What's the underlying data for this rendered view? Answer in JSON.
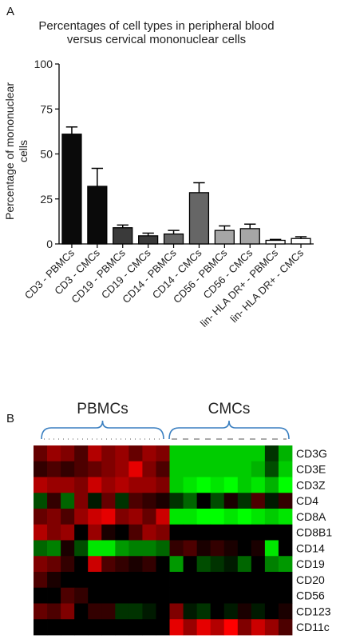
{
  "chart_data": [
    {
      "type": "bar",
      "panel_label": "A",
      "title": "Percentages of cell types in peripheral blood",
      "subtitle": "versus cervical mononuclear cells",
      "ylabel": "Percentage of mononuclear cells",
      "ylabel_lines": [
        "Percentage of mononuclear",
        "cells"
      ],
      "xlabel": "",
      "ylim": [
        0,
        100
      ],
      "yticks": [
        0,
        25,
        50,
        75,
        100
      ],
      "grid": false,
      "categories": [
        "CD3 - PBMCs",
        "CD3 - CMCs",
        "CD19 - PBMCs",
        "CD19 - CMCs",
        "CD14 - PBMCs",
        "CD14 - CMCs",
        "CD56 - PBMCs",
        "CD56 - CMCs",
        "lin- HLA DR+ - PBMCs",
        "lin- HLA DR+ - CMCs"
      ],
      "values": [
        61,
        32,
        9,
        4.5,
        5.5,
        28.5,
        7.5,
        8.5,
        2,
        3
      ],
      "errors": [
        4,
        10,
        1.5,
        1.5,
        2,
        5.5,
        2.5,
        2.5,
        0.5,
        1
      ],
      "bar_colors": [
        "#0a0a0a",
        "#0a0a0a",
        "#3a3a3a",
        "#3a3a3a",
        "#666666",
        "#666666",
        "#a6a6a6",
        "#a6a6a6",
        "#ffffff",
        "#ffffff"
      ]
    },
    {
      "type": "heatmap",
      "panel_label": "B",
      "group_labels": [
        "PBMCs",
        "CMCs"
      ],
      "group_sizes": [
        10,
        9
      ],
      "rows": [
        "CD3G",
        "CD3E",
        "CD3Z",
        "CD4",
        "CD8A",
        "CD8B1",
        "CD14",
        "CD19",
        "CD20",
        "CD56",
        "CD123",
        "CD11c"
      ],
      "colorscale": {
        "low": "#00ff00",
        "mid": "#000000",
        "high": "#ff0000"
      },
      "values": [
        [
          0.4,
          0.6,
          0.5,
          0.3,
          0.7,
          0.5,
          0.6,
          0.4,
          0.6,
          0.5,
          -0.8,
          -0.8,
          -0.8,
          -0.8,
          -0.8,
          -0.8,
          -0.8,
          -0.2,
          -0.7
        ],
        [
          0.2,
          0.3,
          0.2,
          0.3,
          0.4,
          0.5,
          0.6,
          0.9,
          0.5,
          0.3,
          -0.8,
          -0.8,
          -0.8,
          -0.8,
          -0.8,
          -0.8,
          -0.7,
          -0.3,
          -0.8
        ],
        [
          0.7,
          0.6,
          0.6,
          0.5,
          0.8,
          0.6,
          0.7,
          0.6,
          0.6,
          0.5,
          -0.8,
          -0.9,
          -1.0,
          -0.9,
          -1.0,
          -0.8,
          -0.9,
          -0.7,
          -1.0
        ],
        [
          -0.3,
          0.2,
          -0.4,
          0.5,
          -0.1,
          0.4,
          -0.2,
          0.3,
          0.2,
          0.1,
          -0.2,
          -0.4,
          0.0,
          -0.3,
          0.1,
          -0.2,
          0.3,
          -0.1,
          0.2
        ],
        [
          0.4,
          0.5,
          0.3,
          0.6,
          0.8,
          0.9,
          0.5,
          0.6,
          0.4,
          0.8,
          -0.9,
          -0.9,
          -1.0,
          -1.0,
          -0.9,
          -1.0,
          -0.9,
          -0.8,
          -0.9
        ],
        [
          0.7,
          0.5,
          0.6,
          0.0,
          0.6,
          0.1,
          0.0,
          0.3,
          0.6,
          0.5,
          0.0,
          0.0,
          0.0,
          0.0,
          0.0,
          0.0,
          0.0,
          0.0,
          0.0
        ],
        [
          -0.4,
          -0.5,
          0.1,
          -0.3,
          -0.9,
          -0.9,
          -0.6,
          -0.5,
          -0.5,
          -0.4,
          0.2,
          0.3,
          0.1,
          0.2,
          0.1,
          0.0,
          0.1,
          -0.9,
          0.0
        ],
        [
          0.5,
          0.4,
          0.2,
          0.0,
          0.8,
          0.3,
          0.2,
          0.1,
          0.2,
          0.0,
          -0.6,
          0.0,
          -0.3,
          -0.2,
          -0.1,
          -0.4,
          0.0,
          -0.5,
          -0.6
        ],
        [
          0.3,
          0.1,
          0.0,
          0.0,
          0.0,
          0.0,
          0.0,
          0.0,
          0.0,
          0.0,
          0.0,
          0.0,
          0.0,
          0.0,
          0.0,
          0.0,
          0.0,
          0.0,
          0.0
        ],
        [
          0.0,
          0.0,
          0.3,
          0.2,
          0.0,
          0.0,
          0.0,
          0.0,
          0.0,
          0.0,
          0.0,
          0.0,
          0.0,
          0.0,
          0.0,
          0.0,
          0.0,
          0.0,
          0.0
        ],
        [
          0.4,
          0.3,
          0.5,
          0.0,
          0.2,
          0.2,
          -0.2,
          -0.2,
          -0.1,
          0.0,
          0.5,
          -0.1,
          -0.2,
          0.0,
          -0.1,
          0.1,
          -0.1,
          0.0,
          0.1
        ],
        [
          0.0,
          0.0,
          0.0,
          0.0,
          0.0,
          0.0,
          0.0,
          0.0,
          0.0,
          0.0,
          0.9,
          0.6,
          0.9,
          0.7,
          1.0,
          0.5,
          0.8,
          0.6,
          0.3
        ]
      ]
    }
  ]
}
